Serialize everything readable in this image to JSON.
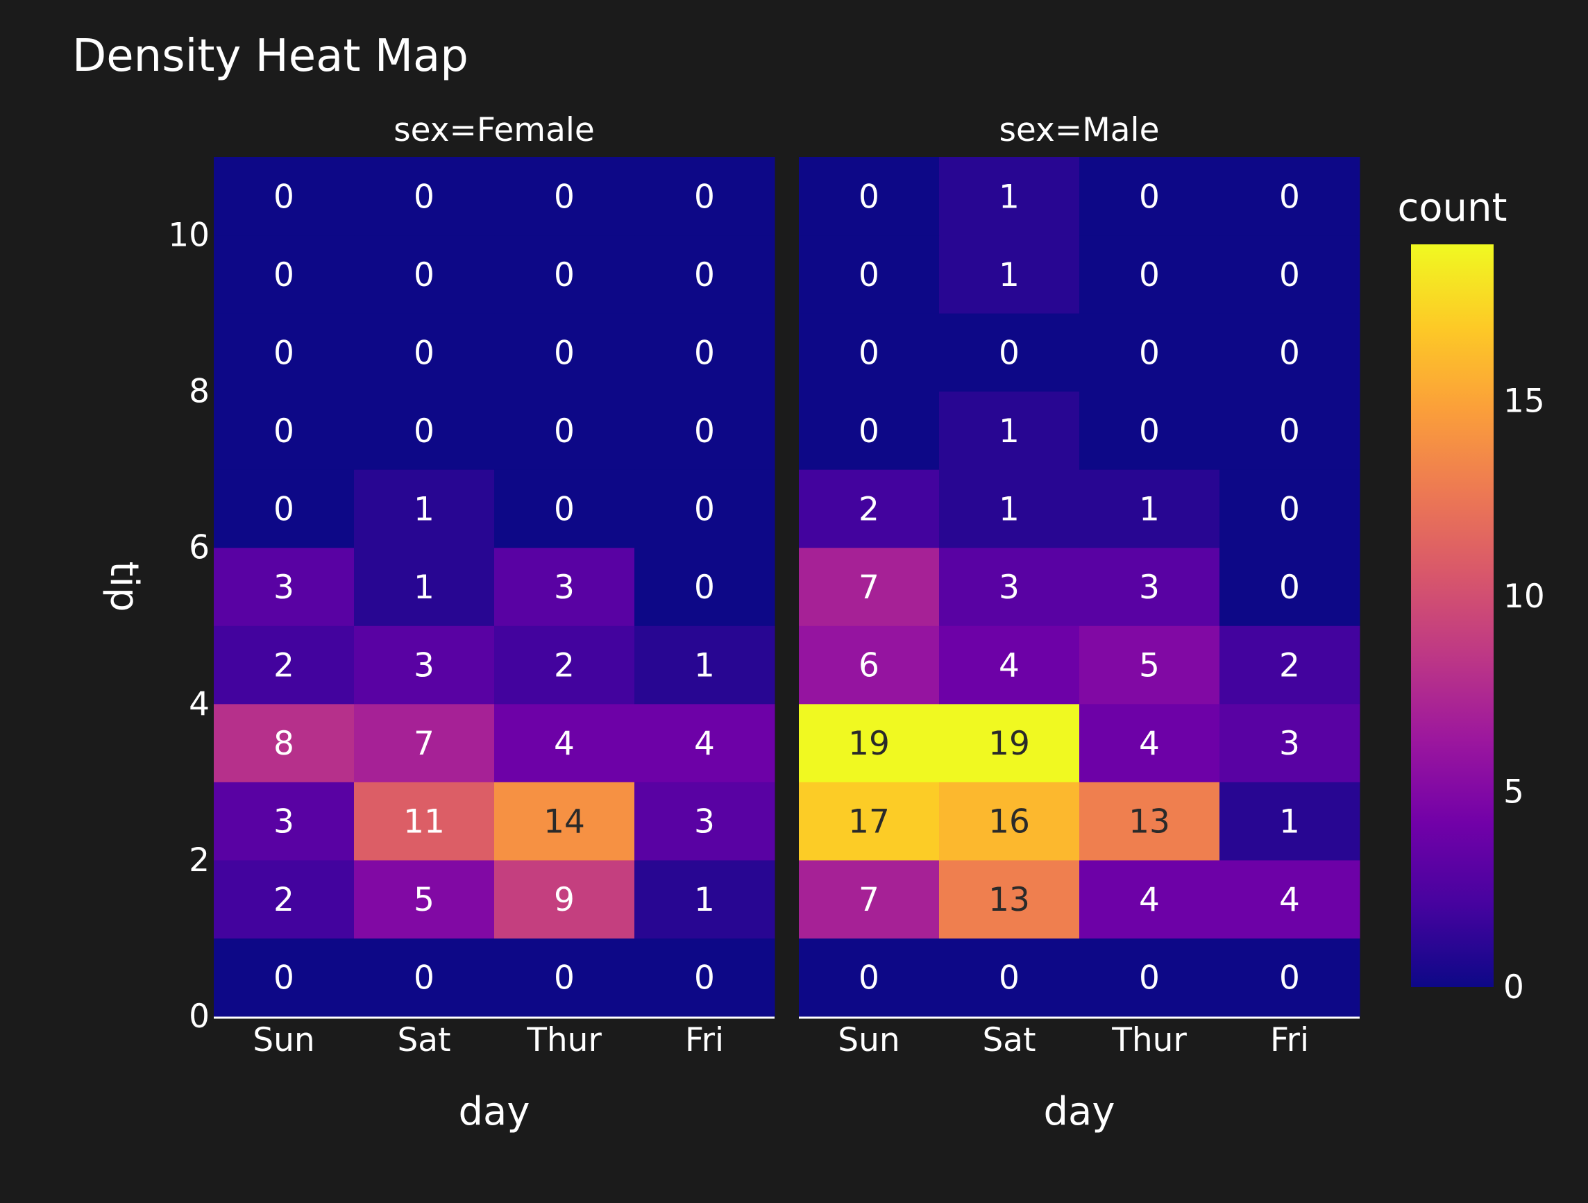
{
  "chart_data": {
    "type": "heatmap",
    "title": "Density Heat Map",
    "xlabel": "day",
    "ylabel": "tip",
    "y_ticks": [
      0,
      2,
      4,
      6,
      8,
      10
    ],
    "ylim": [
      0,
      11
    ],
    "y_bins": [
      [
        0,
        1
      ],
      [
        1,
        2
      ],
      [
        2,
        3
      ],
      [
        3,
        4
      ],
      [
        4,
        5
      ],
      [
        5,
        6
      ],
      [
        6,
        7
      ],
      [
        7,
        8
      ],
      [
        8,
        9
      ],
      [
        9,
        10
      ],
      [
        10,
        11
      ]
    ],
    "categories": [
      "Sun",
      "Sat",
      "Thur",
      "Fri"
    ],
    "facets": [
      {
        "label": "sex=Female",
        "counts": [
          [
            0,
            0,
            0,
            0
          ],
          [
            2,
            5,
            9,
            1
          ],
          [
            3,
            11,
            14,
            3
          ],
          [
            8,
            7,
            4,
            4
          ],
          [
            2,
            3,
            2,
            1
          ],
          [
            3,
            1,
            3,
            0
          ],
          [
            0,
            1,
            0,
            0
          ],
          [
            0,
            0,
            0,
            0
          ],
          [
            0,
            0,
            0,
            0
          ],
          [
            0,
            0,
            0,
            0
          ],
          [
            0,
            0,
            0,
            0
          ]
        ]
      },
      {
        "label": "sex=Male",
        "counts": [
          [
            0,
            0,
            0,
            0
          ],
          [
            7,
            13,
            4,
            4
          ],
          [
            17,
            16,
            13,
            1
          ],
          [
            19,
            19,
            4,
            3
          ],
          [
            6,
            4,
            5,
            2
          ],
          [
            7,
            3,
            3,
            0
          ],
          [
            2,
            1,
            1,
            0
          ],
          [
            0,
            1,
            0,
            0
          ],
          [
            0,
            0,
            0,
            0
          ],
          [
            0,
            1,
            0,
            0
          ],
          [
            0,
            1,
            0,
            0
          ]
        ]
      }
    ],
    "colorbar": {
      "title": "count",
      "ticks": [
        0,
        5,
        10,
        15
      ],
      "range": [
        0,
        19
      ],
      "colorscale": [
        "#0d0887",
        "#46039f",
        "#7201a8",
        "#9c179e",
        "#bd3786",
        "#d8576b",
        "#ed7953",
        "#fb9f3a",
        "#fdca26",
        "#f0f921"
      ]
    },
    "background_color": "#1b1b1b"
  }
}
